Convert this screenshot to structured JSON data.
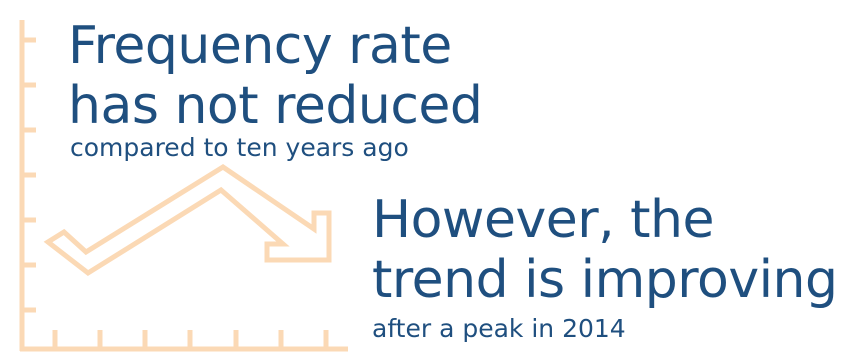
{
  "headline_1": {
    "line_1": "Frequency rate",
    "line_2": "has not reduced",
    "subtitle": "compared to ten years ago"
  },
  "headline_2": {
    "line_1": "However, the",
    "line_2": "trend is improving",
    "subtitle": "after a peak in 2014"
  },
  "colors": {
    "text": "#1f4f7f",
    "graphic": "#fbd9b5"
  },
  "icons": [
    "chart-axes-icon",
    "trend-arrow-icon"
  ]
}
